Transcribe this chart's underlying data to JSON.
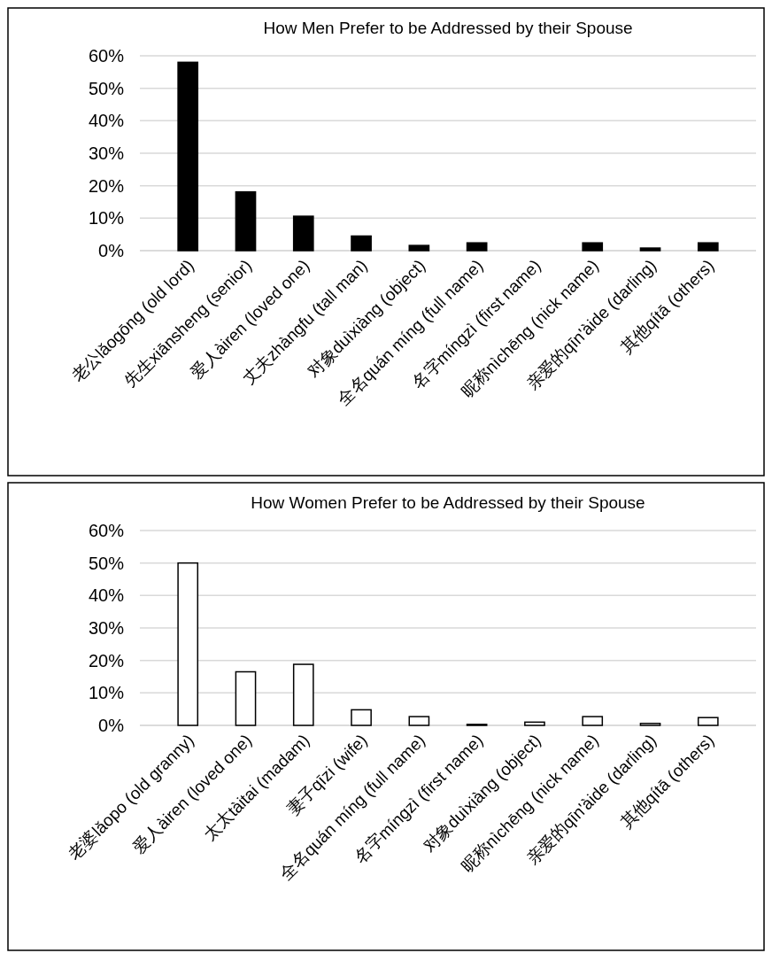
{
  "chart_data": [
    {
      "type": "bar",
      "title": "How Men Prefer to be Addressed by their Spouse",
      "categories": [
        "老公lǎogōng (old lord)",
        "先生xiānsheng (senior)",
        "爱人àiren (loved one)",
        "丈夫zhàngfu (tall man)",
        "对象duìxiàng (object)",
        "全名quán míng (full name)",
        "名字míngzì (first name)",
        "昵称nìchēng (nick name)",
        "亲爱的qīn'àide (darling)",
        "其他qítā (others)"
      ],
      "values": [
        58,
        18.1,
        10.6,
        4.5,
        1.6,
        2.4,
        0,
        2.4,
        0.8,
        2.4
      ],
      "color": "#000000",
      "ylim": [
        0,
        60
      ],
      "yticks": [
        {
          "value": 0,
          "label": "0%"
        },
        {
          "value": 10,
          "label": "10%"
        },
        {
          "value": 20,
          "label": "20%"
        },
        {
          "value": 30,
          "label": "30%"
        },
        {
          "value": 40,
          "label": "40%"
        },
        {
          "value": 50,
          "label": "50%"
        },
        {
          "value": 60,
          "label": "60%"
        }
      ],
      "grid": "y"
    },
    {
      "type": "bar",
      "title": "How Women Prefer to be Addressed by their Spouse",
      "categories": [
        "老婆lǎopo (old granny)",
        "爱人àiren (loved one)",
        "太太tàitai (madam)",
        "妻子qīzi (wife)",
        "全名quán míng (full name)",
        "名字míngzì (first name)",
        "对象duìxiàng (object)",
        "昵称nìchēng (nick name)",
        "亲爱的qīn'àide (darling)",
        "其他qítā (others)"
      ],
      "values": [
        50,
        16.5,
        18.8,
        4.8,
        2.7,
        0.3,
        1.0,
        2.7,
        0.6,
        2.4
      ],
      "color": "#ffffff",
      "ylim": [
        0,
        60
      ],
      "yticks": [
        {
          "value": 0,
          "label": "0%"
        },
        {
          "value": 10,
          "label": "10%"
        },
        {
          "value": 20,
          "label": "20%"
        },
        {
          "value": 30,
          "label": "30%"
        },
        {
          "value": 40,
          "label": "40%"
        },
        {
          "value": 50,
          "label": "50%"
        },
        {
          "value": 60,
          "label": "60%"
        }
      ],
      "grid": "y"
    }
  ]
}
